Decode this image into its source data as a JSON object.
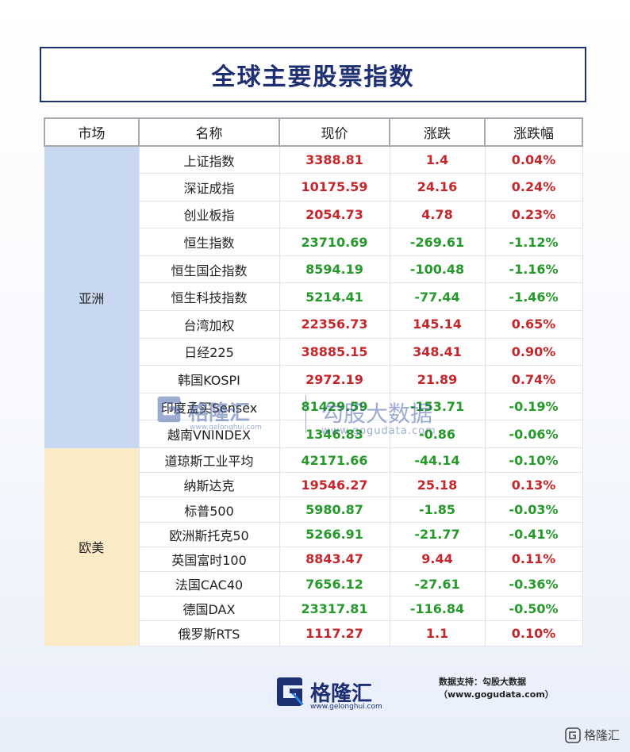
{
  "title": "全球主要股票指数",
  "headers": [
    "市场",
    "名称",
    "现价",
    "涨跌",
    "涨跌幅"
  ],
  "regions": {
    "asia": "亚洲",
    "euro": "欧美"
  },
  "rows": [
    {
      "name": "上证指数",
      "price": "3388.81",
      "change": "1.4",
      "pct": "0.04%",
      "dir": "up"
    },
    {
      "name": "深证成指",
      "price": "10175.59",
      "change": "24.16",
      "pct": "0.24%",
      "dir": "up"
    },
    {
      "name": "创业板指",
      "price": "2054.73",
      "change": "4.78",
      "pct": "0.23%",
      "dir": "up"
    },
    {
      "name": "恒生指数",
      "price": "23710.69",
      "change": "-269.61",
      "pct": "-1.12%",
      "dir": "down"
    },
    {
      "name": "恒生国企指数",
      "price": "8594.19",
      "change": "-100.48",
      "pct": "-1.16%",
      "dir": "down"
    },
    {
      "name": "恒生科技指数",
      "price": "5214.41",
      "change": "-77.44",
      "pct": "-1.46%",
      "dir": "down"
    },
    {
      "name": "台湾加权",
      "price": "22356.73",
      "change": "145.14",
      "pct": "0.65%",
      "dir": "up"
    },
    {
      "name": "日经225",
      "price": "38885.15",
      "change": "348.41",
      "pct": "0.90%",
      "dir": "up"
    },
    {
      "name": "韩国KOSPI",
      "price": "2972.19",
      "change": "21.89",
      "pct": "0.74%",
      "dir": "up"
    },
    {
      "name": "印度孟买Sensex",
      "price": "81429.59",
      "change": "-153.71",
      "pct": "-0.19%",
      "dir": "down"
    },
    {
      "name": "越南VNINDEX",
      "price": "1346.83",
      "change": "-0.86",
      "pct": "-0.06%",
      "dir": "down"
    },
    {
      "name": "道琼斯工业平均",
      "price": "42171.66",
      "change": "-44.14",
      "pct": "-0.10%",
      "dir": "down"
    },
    {
      "name": "纳斯达克",
      "price": "19546.27",
      "change": "25.18",
      "pct": "0.13%",
      "dir": "up"
    },
    {
      "name": "标普500",
      "price": "5980.87",
      "change": "-1.85",
      "pct": "-0.03%",
      "dir": "down"
    },
    {
      "name": "欧洲斯托克50",
      "price": "5266.91",
      "change": "-21.77",
      "pct": "-0.41%",
      "dir": "down"
    },
    {
      "name": "英国富时100",
      "price": "8843.47",
      "change": "9.44",
      "pct": "0.11%",
      "dir": "up"
    },
    {
      "name": "法国CAC40",
      "price": "7656.12",
      "change": "-27.61",
      "pct": "-0.36%",
      "dir": "down"
    },
    {
      "name": "德国DAX",
      "price": "23317.81",
      "change": "-116.84",
      "pct": "-0.50%",
      "dir": "down"
    },
    {
      "name": "俄罗斯RTS",
      "price": "1117.27",
      "change": "1.1",
      "pct": "0.10%",
      "dir": "up"
    }
  ],
  "watermark": {
    "brand": "格隆汇",
    "sub": "www.gelonghui.com",
    "brand2": "勾股大数据",
    "site": "www.gogudata.com"
  },
  "footer": {
    "brand": "格隆汇",
    "site": "www.gelonghui.com",
    "source": "数据支持：勾股大数据（www.gogudata.com）",
    "corner": "格隆汇"
  },
  "colors": {
    "up": "#c6262b",
    "down": "#259a2a",
    "navy": "#1e2f73",
    "asia_bg": "#c8d8f1",
    "euro_bg": "#faeac6"
  }
}
